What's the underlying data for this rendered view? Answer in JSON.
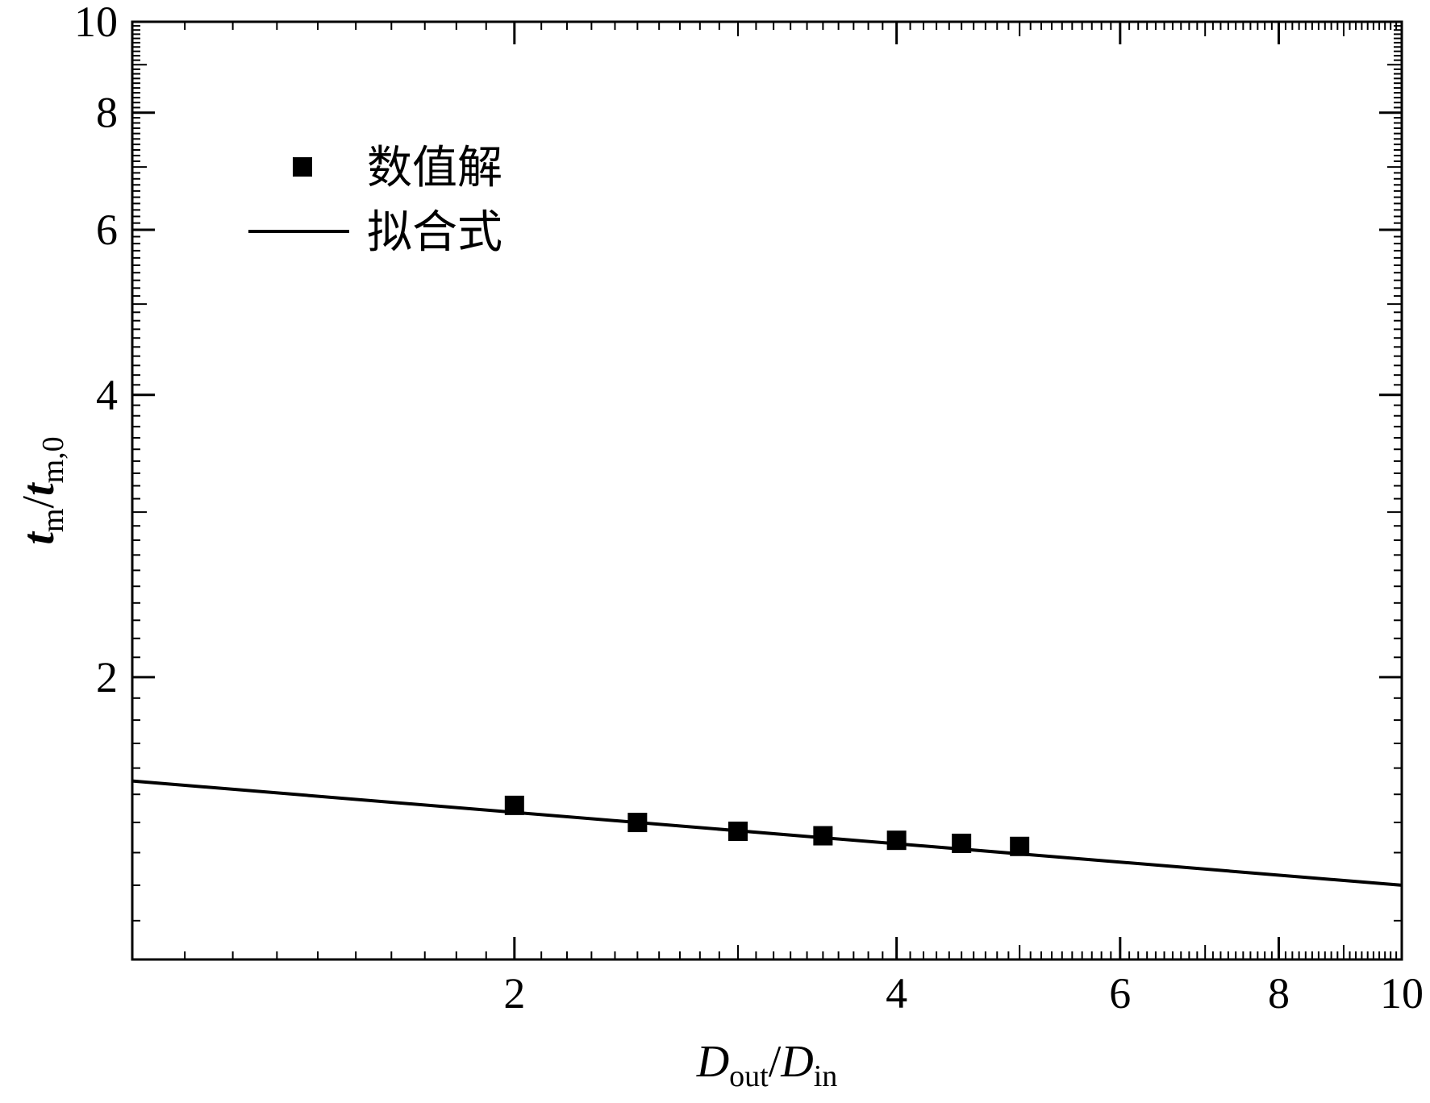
{
  "chart_data": {
    "type": "scatter",
    "xscale": "log",
    "yscale": "log",
    "xlim": [
      1.0,
      10.0
    ],
    "ylim": [
      1.0,
      10.0
    ],
    "x_ticks": [
      2,
      4,
      6,
      8,
      10
    ],
    "y_ticks": [
      2,
      4,
      6,
      8,
      10
    ],
    "x_tick_labels": [
      "2",
      "4",
      "6",
      "8",
      "10"
    ],
    "y_tick_labels": [
      "2",
      "4",
      "6",
      "8",
      "10"
    ],
    "xlabel": {
      "main1": "D",
      "sub1": "out",
      "slash": "/",
      "main2": "D",
      "sub2": "in"
    },
    "ylabel": {
      "main1": "t",
      "sub1": "m",
      "slash": "/",
      "main2": "t",
      "sub2": "m,0"
    },
    "legend_position": "top-left",
    "series": [
      {
        "name": "数值解",
        "kind": "markers",
        "marker": "square",
        "color": "#000000",
        "x": [
          2.0,
          2.5,
          3.0,
          3.5,
          4.0,
          4.5,
          5.0
        ],
        "y": [
          1.46,
          1.4,
          1.37,
          1.355,
          1.34,
          1.33,
          1.32
        ]
      },
      {
        "name": "拟合式",
        "kind": "line",
        "color": "#000000",
        "x": [
          1.0,
          10.0
        ],
        "y": [
          1.55,
          1.2
        ]
      }
    ]
  }
}
